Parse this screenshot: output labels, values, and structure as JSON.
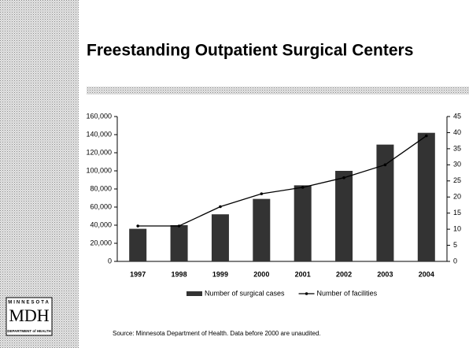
{
  "logo": {
    "top": "MINNESOTA",
    "main": "MDH",
    "bottom": "DEPARTMENT of HEALTH"
  },
  "chart_data": {
    "type": "bar",
    "title": "Freestanding Outpatient Surgical Centers",
    "source": "Source: Minnesota Department of Health.  Data before 2000 are unaudited.",
    "categories": [
      "1997",
      "1998",
      "1999",
      "2000",
      "2001",
      "2002",
      "2003",
      "2004"
    ],
    "series": [
      {
        "name": "Number of surgical cases",
        "type": "bar",
        "color": "#333333",
        "values": [
          36000,
          40000,
          52000,
          69000,
          84000,
          100000,
          129000,
          142000
        ]
      },
      {
        "name": "Number of facilities",
        "type": "line",
        "axis": "y2",
        "color": "#000000",
        "values": [
          11,
          11,
          17,
          21,
          23,
          26,
          30,
          39
        ]
      }
    ],
    "ylim": [
      0,
      160000
    ],
    "yticks": [
      0,
      {
        "value": 20000,
        "label": "20,000"
      },
      {
        "value": 40000,
        "label": "40,000"
      },
      {
        "value": 60000,
        "label": "60,000"
      },
      {
        "value": 80000,
        "label": "80,000"
      },
      {
        "value": 100000,
        "label": "100,000"
      },
      {
        "value": 120000,
        "label": "120,000"
      },
      {
        "value": 140000,
        "label": "140,000"
      },
      {
        "value": 160000,
        "label": "160,000"
      }
    ],
    "y2lim": [
      0,
      45
    ],
    "y2ticks": [
      0,
      5,
      10,
      15,
      20,
      25,
      30,
      35,
      40,
      45
    ],
    "legend": "bottom"
  }
}
